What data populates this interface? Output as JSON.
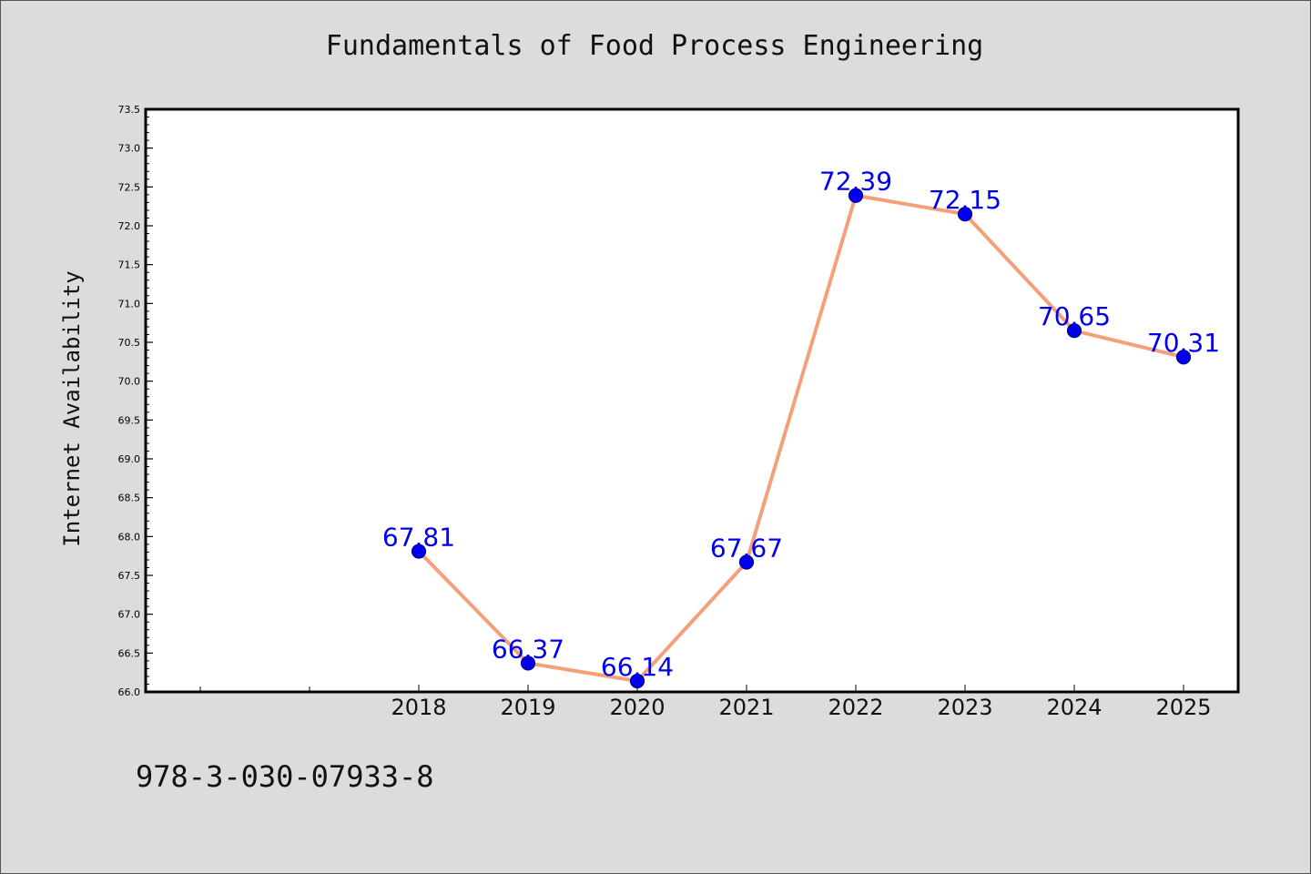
{
  "chart_data": {
    "type": "line",
    "title": "Fundamentals of Food Process Engineering",
    "xlabel": "",
    "ylabel": "Internet Availability",
    "x": [
      "2018",
      "2019",
      "2020",
      "2021",
      "2022",
      "2023",
      "2024",
      "2025"
    ],
    "series": [
      {
        "values": [
          67.81,
          66.37,
          66.14,
          67.67,
          72.39,
          72.15,
          70.65,
          70.31
        ],
        "data_labels": [
          "67.81",
          "66.37",
          "66.14",
          "67.67",
          "72.39",
          "72.15",
          "70.65",
          "70.31"
        ],
        "line_color": "#f4a07a",
        "marker_color": "#0000ee",
        "label_color": "#0000ee"
      }
    ],
    "ylim": [
      66.0,
      73.5
    ],
    "yticks": [
      "66.0",
      "66.5",
      "67.0",
      "67.5",
      "68.0",
      "68.5",
      "69.0",
      "69.5",
      "70.0",
      "70.5",
      "71.0",
      "71.5",
      "72.0",
      "72.5",
      "73.0",
      "73.5"
    ],
    "grid": false,
    "legend": "none"
  },
  "footer": {
    "isbn": "978-3-030-07933-8"
  }
}
